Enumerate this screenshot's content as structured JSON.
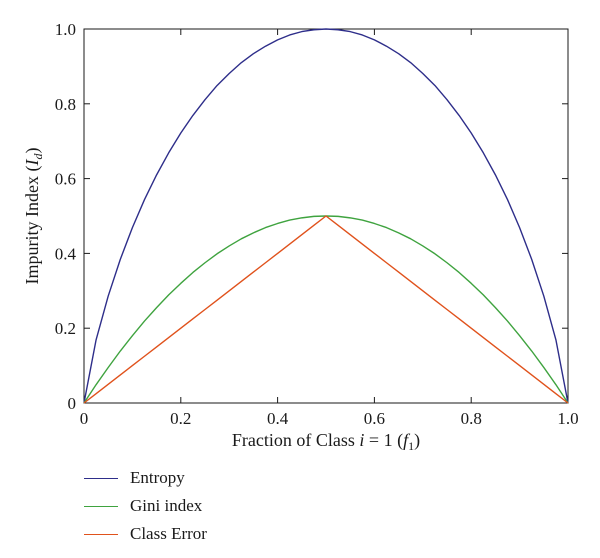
{
  "chart_data": {
    "type": "line",
    "xlabel": {
      "prefix": "Fraction of Class ",
      "italic": "i",
      "middle": " = 1 (",
      "var": "f",
      "sub": "1",
      "suffix": ")"
    },
    "ylabel": {
      "prefix": "Impurity Index (",
      "var": "I",
      "sub": "d",
      "suffix": ")"
    },
    "xlim": [
      0,
      1
    ],
    "ylim": [
      0,
      1
    ],
    "x_ticks": [
      0,
      0.2,
      0.4,
      0.6,
      0.8,
      1.0
    ],
    "x_tick_labels": [
      "0",
      "0.2",
      "0.4",
      "0.6",
      "0.8",
      "1.0"
    ],
    "y_ticks": [
      0,
      0.2,
      0.4,
      0.6,
      0.8,
      1.0
    ],
    "y_tick_labels": [
      "0",
      "0.2",
      "0.4",
      "0.6",
      "0.8",
      "1.0"
    ],
    "grid": false,
    "legend_position": "below",
    "x": [
      0,
      0.025,
      0.05,
      0.075,
      0.1,
      0.125,
      0.15,
      0.175,
      0.2,
      0.225,
      0.25,
      0.275,
      0.3,
      0.325,
      0.35,
      0.375,
      0.4,
      0.425,
      0.45,
      0.475,
      0.5,
      0.525,
      0.55,
      0.575,
      0.6,
      0.625,
      0.65,
      0.675,
      0.7,
      0.725,
      0.75,
      0.775,
      0.8,
      0.825,
      0.85,
      0.875,
      0.9,
      0.925,
      0.95,
      0.975,
      1.0
    ],
    "series": [
      {
        "name": "Entropy",
        "color": "#2e2e8a",
        "values": [
          0,
          0.169,
          0.286,
          0.384,
          0.469,
          0.544,
          0.61,
          0.669,
          0.722,
          0.769,
          0.811,
          0.849,
          0.881,
          0.91,
          0.934,
          0.954,
          0.971,
          0.984,
          0.993,
          0.998,
          1.0,
          0.998,
          0.993,
          0.984,
          0.971,
          0.954,
          0.934,
          0.91,
          0.881,
          0.849,
          0.811,
          0.769,
          0.722,
          0.669,
          0.61,
          0.544,
          0.469,
          0.384,
          0.286,
          0.169,
          0
        ]
      },
      {
        "name": "Gini index",
        "color": "#3fa33f",
        "values": [
          0,
          0.049,
          0.095,
          0.139,
          0.18,
          0.219,
          0.255,
          0.289,
          0.32,
          0.349,
          0.375,
          0.399,
          0.42,
          0.439,
          0.455,
          0.469,
          0.48,
          0.489,
          0.495,
          0.499,
          0.5,
          0.499,
          0.495,
          0.489,
          0.48,
          0.469,
          0.455,
          0.439,
          0.42,
          0.399,
          0.375,
          0.349,
          0.32,
          0.289,
          0.255,
          0.219,
          0.18,
          0.139,
          0.095,
          0.049,
          0
        ]
      },
      {
        "name": "Class Error",
        "color": "#e0521c",
        "values": [
          0,
          0.025,
          0.05,
          0.075,
          0.1,
          0.125,
          0.15,
          0.175,
          0.2,
          0.225,
          0.25,
          0.275,
          0.3,
          0.325,
          0.35,
          0.375,
          0.4,
          0.425,
          0.45,
          0.475,
          0.5,
          0.475,
          0.45,
          0.425,
          0.4,
          0.375,
          0.35,
          0.325,
          0.3,
          0.275,
          0.25,
          0.225,
          0.2,
          0.175,
          0.15,
          0.125,
          0.1,
          0.075,
          0.05,
          0.025,
          0
        ]
      }
    ]
  }
}
